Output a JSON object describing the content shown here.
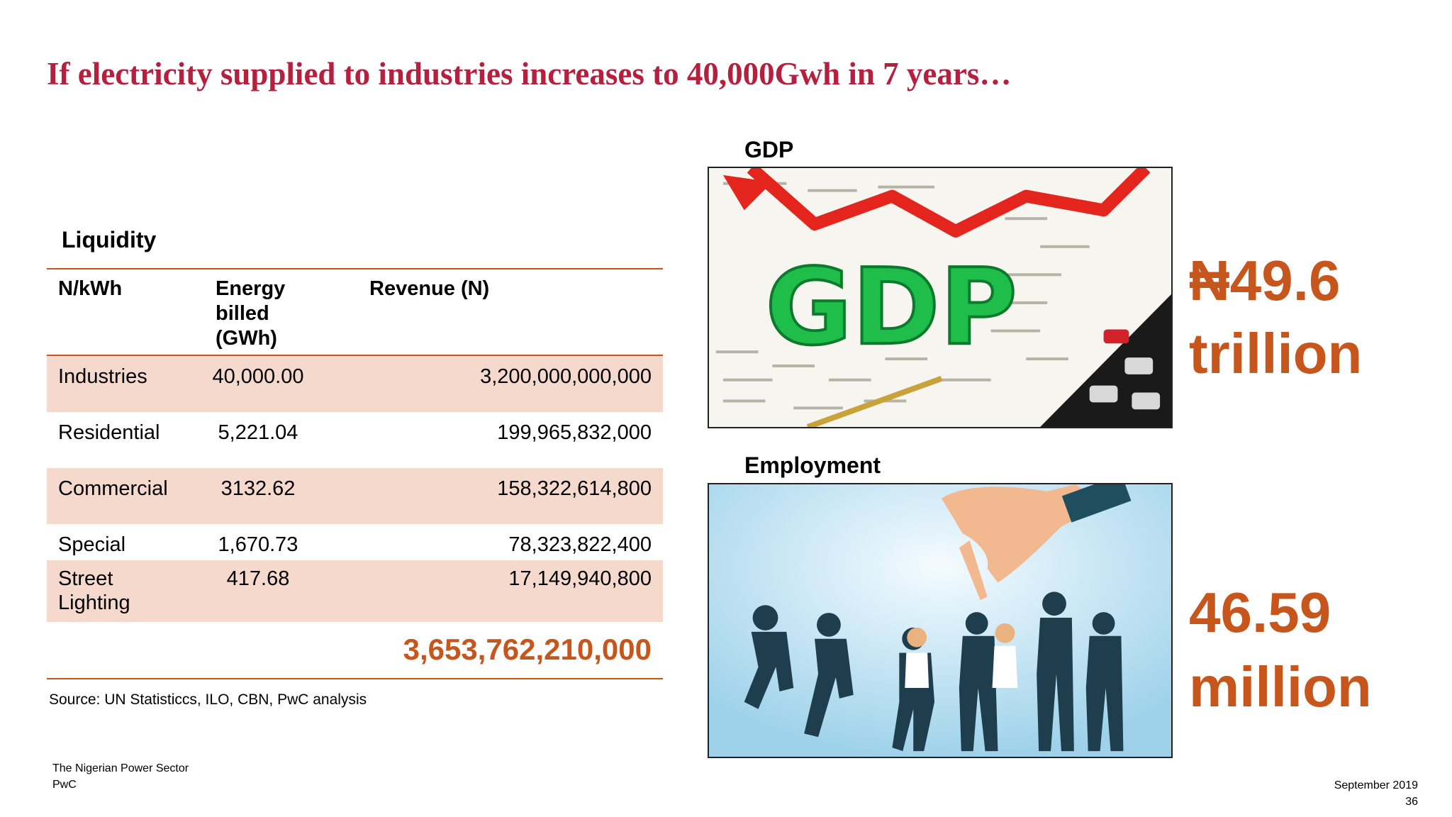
{
  "title": "If electricity supplied to industries increases to 40,000Gwh in 7 years…",
  "liquidity": {
    "heading": "Liquidity",
    "headers": [
      "N/kWh",
      "Energy billed (GWh)",
      "Revenue (N)"
    ],
    "header_energy_lines": [
      "Energy",
      "billed",
      "(GWh)"
    ],
    "rows": [
      {
        "category": "Industries",
        "energy": "40,000.00",
        "revenue": "3,200,000,000,000"
      },
      {
        "category": "Residential",
        "energy": "5,221.04",
        "revenue": "199,965,832,000"
      },
      {
        "category": "Commercial",
        "energy": "3132.62",
        "revenue": "158,322,614,800"
      },
      {
        "category": "Special",
        "energy": "1,670.73",
        "revenue": "78,323,822,400"
      },
      {
        "category_lines": [
          "Street",
          "Lighting"
        ],
        "energy": "417.68",
        "revenue": "17,149,940,800"
      }
    ],
    "total": "3,653,762,210,000"
  },
  "source": "Source: UN Statisticcs, ILO, CBN, PwC analysis",
  "gdp": {
    "label": "GDP",
    "value_line1": "₦49.6",
    "value_line2": "trillion",
    "image_letters": "GDP"
  },
  "employment": {
    "label": "Employment",
    "value_line1": "46.59",
    "value_line2": "million"
  },
  "footer": {
    "line1": "The Nigerian Power Sector",
    "line2": "PwC",
    "date": "September 2019",
    "page": "36"
  },
  "colors": {
    "title": "#b5203f",
    "accent": "#c7561d",
    "row_shade": "#f5d9cd"
  }
}
